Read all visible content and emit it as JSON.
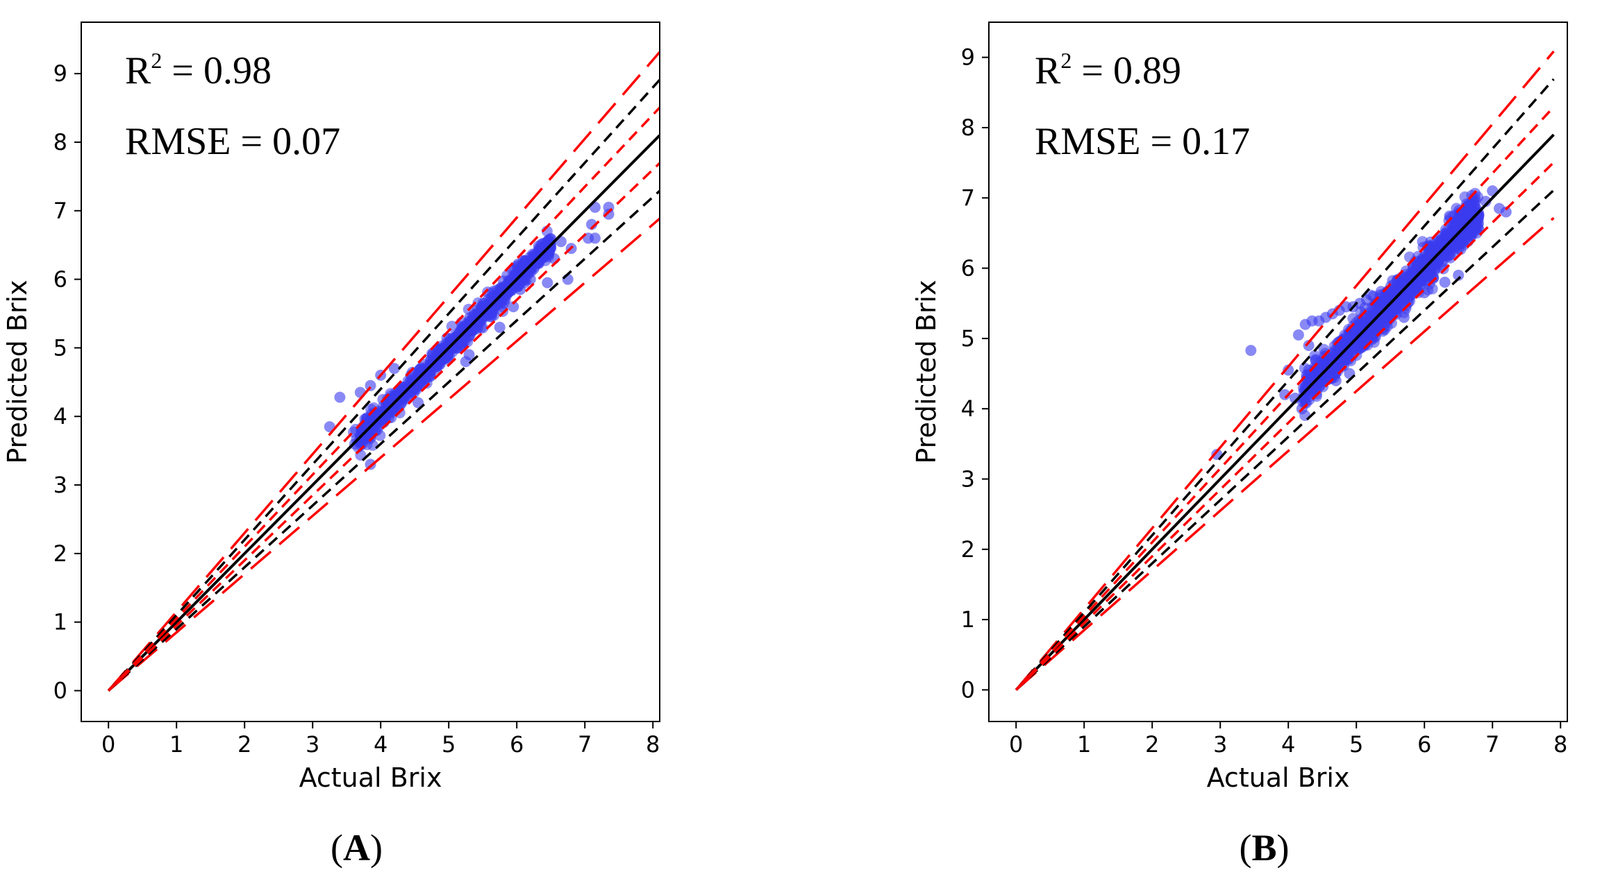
{
  "chart_data": [
    {
      "type": "scatter",
      "panel_label": "A",
      "xlabel": "Actual Brix",
      "ylabel": "Predicted Brix",
      "xlim": [
        -0.4,
        8.1
      ],
      "ylim": [
        -0.45,
        9.75
      ],
      "xticks": [
        0,
        1,
        2,
        3,
        4,
        5,
        6,
        7,
        8
      ],
      "yticks": [
        0,
        1,
        2,
        3,
        4,
        5,
        6,
        7,
        8,
        9
      ],
      "x_max": 8.1,
      "stats": {
        "r2_label": "R",
        "r2_sup": "2",
        "r2_value": " = 0.98",
        "rmse_text": "RMSE = 0.07"
      },
      "lines": [
        {
          "name": "1:1 line",
          "slope": 1.0,
          "style": "solid",
          "color": "#000000"
        },
        {
          "name": "+15% limit",
          "slope": 1.15,
          "style": "long-dash",
          "color": "#ff0000"
        },
        {
          "name": "-15% limit",
          "slope": 0.85,
          "style": "long-dash",
          "color": "#ff0000"
        },
        {
          "name": "+10% limit",
          "slope": 1.1,
          "style": "dash",
          "color": "#000000"
        },
        {
          "name": "-10% limit",
          "slope": 0.9,
          "style": "dash",
          "color": "#000000"
        },
        {
          "name": "+5% limit",
          "slope": 1.05,
          "style": "dash",
          "color": "#ff0000"
        },
        {
          "name": "-5% limit",
          "slope": 0.95,
          "style": "dash",
          "color": "#ff0000"
        }
      ],
      "points_cloud": {
        "x_range": [
          3.6,
          6.5
        ],
        "spread": 0.1,
        "count": 900,
        "color": "#3a3aee"
      },
      "points": [
        [
          3.25,
          3.85
        ],
        [
          3.4,
          4.28
        ],
        [
          3.85,
          3.3
        ],
        [
          3.7,
          4.35
        ],
        [
          3.85,
          4.45
        ],
        [
          4.0,
          4.6
        ],
        [
          4.1,
          4.25
        ],
        [
          4.2,
          4.7
        ],
        [
          4.55,
          4.2
        ],
        [
          4.85,
          4.8
        ],
        [
          5.25,
          4.8
        ],
        [
          5.3,
          4.9
        ],
        [
          5.75,
          5.3
        ],
        [
          5.95,
          5.6
        ],
        [
          6.05,
          5.85
        ],
        [
          6.2,
          6.0
        ],
        [
          6.45,
          5.95
        ],
        [
          6.45,
          6.55
        ],
        [
          6.55,
          6.3
        ],
        [
          6.8,
          6.45
        ],
        [
          6.75,
          6.0
        ],
        [
          6.65,
          6.55
        ],
        [
          7.05,
          6.6
        ],
        [
          7.1,
          6.8
        ],
        [
          7.15,
          7.05
        ],
        [
          7.15,
          6.6
        ],
        [
          7.35,
          7.05
        ],
        [
          7.35,
          6.95
        ]
      ]
    },
    {
      "type": "scatter",
      "panel_label": "B",
      "xlabel": "Actual Brix",
      "ylabel": "Predicted Brix",
      "xlim": [
        -0.4,
        8.1
      ],
      "ylim": [
        -0.45,
        9.5
      ],
      "xticks": [
        0,
        1,
        2,
        3,
        4,
        5,
        6,
        7,
        8
      ],
      "yticks": [
        0,
        1,
        2,
        3,
        4,
        5,
        6,
        7,
        8,
        9
      ],
      "x_max": 7.9,
      "stats": {
        "r2_label": "R",
        "r2_sup": "2",
        "r2_value": " = 0.89",
        "rmse_text": "RMSE = 0.17"
      },
      "lines": [
        {
          "name": "1:1 line",
          "slope": 1.0,
          "style": "solid",
          "color": "#000000"
        },
        {
          "name": "+15% limit",
          "slope": 1.15,
          "style": "long-dash",
          "color": "#ff0000"
        },
        {
          "name": "-15% limit",
          "slope": 0.85,
          "style": "long-dash",
          "color": "#ff0000"
        },
        {
          "name": "+10% limit",
          "slope": 1.1,
          "style": "dash",
          "color": "#000000"
        },
        {
          "name": "-10% limit",
          "slope": 0.9,
          "style": "dash",
          "color": "#000000"
        },
        {
          "name": "+5% limit",
          "slope": 1.05,
          "style": "dash",
          "color": "#ff0000"
        },
        {
          "name": "-5% limit",
          "slope": 0.95,
          "style": "dash",
          "color": "#ff0000"
        }
      ],
      "points_cloud": {
        "x_range": [
          4.2,
          6.8
        ],
        "spread": 0.16,
        "count": 1100,
        "color": "#3a3aee"
      },
      "points": [
        [
          2.95,
          3.35
        ],
        [
          3.45,
          4.83
        ],
        [
          3.95,
          4.2
        ],
        [
          4.0,
          4.55
        ],
        [
          4.1,
          4.15
        ],
        [
          4.2,
          4.0
        ],
        [
          4.3,
          4.55
        ],
        [
          4.3,
          4.9
        ],
        [
          4.25,
          5.2
        ],
        [
          4.35,
          5.25
        ],
        [
          4.45,
          5.25
        ],
        [
          4.55,
          5.3
        ],
        [
          4.65,
          5.35
        ],
        [
          4.75,
          5.4
        ],
        [
          4.85,
          5.45
        ],
        [
          4.95,
          5.45
        ],
        [
          5.05,
          5.5
        ],
        [
          5.15,
          5.55
        ],
        [
          5.25,
          5.6
        ],
        [
          5.35,
          5.62
        ],
        [
          5.45,
          5.65
        ],
        [
          5.55,
          5.7
        ],
        [
          5.65,
          5.75
        ],
        [
          5.8,
          5.8
        ],
        [
          4.5,
          4.5
        ],
        [
          4.7,
          4.4
        ],
        [
          4.9,
          4.5
        ],
        [
          5.5,
          5.3
        ],
        [
          5.7,
          5.3
        ],
        [
          6.0,
          5.65
        ],
        [
          6.3,
          5.8
        ],
        [
          6.5,
          5.9
        ],
        [
          6.4,
          6.5
        ],
        [
          6.6,
          6.7
        ],
        [
          6.75,
          6.85
        ],
        [
          6.9,
          6.95
        ],
        [
          7.0,
          7.1
        ],
        [
          6.8,
          6.55
        ],
        [
          7.1,
          6.85
        ],
        [
          7.2,
          6.8
        ],
        [
          4.15,
          5.05
        ],
        [
          4.4,
          4.7
        ]
      ]
    }
  ]
}
